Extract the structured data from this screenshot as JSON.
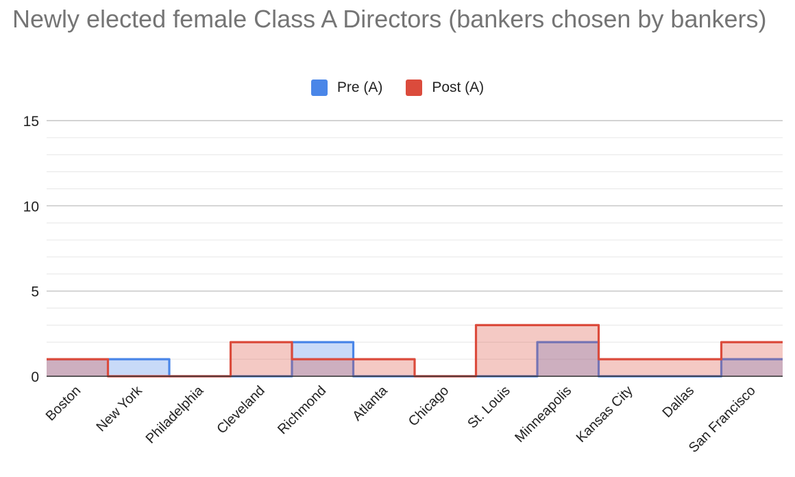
{
  "title": "Newly elected female Class A Directors (bankers chosen by bankers)",
  "legend": {
    "items": [
      {
        "label": "Pre (A)",
        "color": "#4a86e8"
      },
      {
        "label": "Post (A)",
        "color": "#db4b3c"
      }
    ]
  },
  "chart_data": {
    "type": "area",
    "title": "Newly elected female Class A Directors (bankers chosen by bankers)",
    "categories": [
      "Boston",
      "New York",
      "Philadelphia",
      "Cleveland",
      "Richmond",
      "Atlanta",
      "Chicago",
      "St. Louis",
      "Minneapolis",
      "Kansas City",
      "Dallas",
      "San Francisco"
    ],
    "series": [
      {
        "name": "Pre (A)",
        "color": "#4a86e8",
        "fill": "#c9daf8",
        "values": [
          1,
          1,
          0,
          0,
          2,
          0,
          0,
          0,
          2,
          0,
          0,
          1
        ]
      },
      {
        "name": "Post (A)",
        "color": "#db4b3c",
        "fill": "#f4c7c3",
        "values": [
          1,
          0,
          0,
          2,
          1,
          1,
          0,
          3,
          3,
          1,
          1,
          2
        ]
      }
    ],
    "ylim": [
      0,
      15
    ],
    "yticks": [
      0,
      5,
      10,
      15
    ],
    "xlabel": "",
    "ylabel": "",
    "grid": true,
    "stepped": true,
    "legend_position": "top"
  }
}
